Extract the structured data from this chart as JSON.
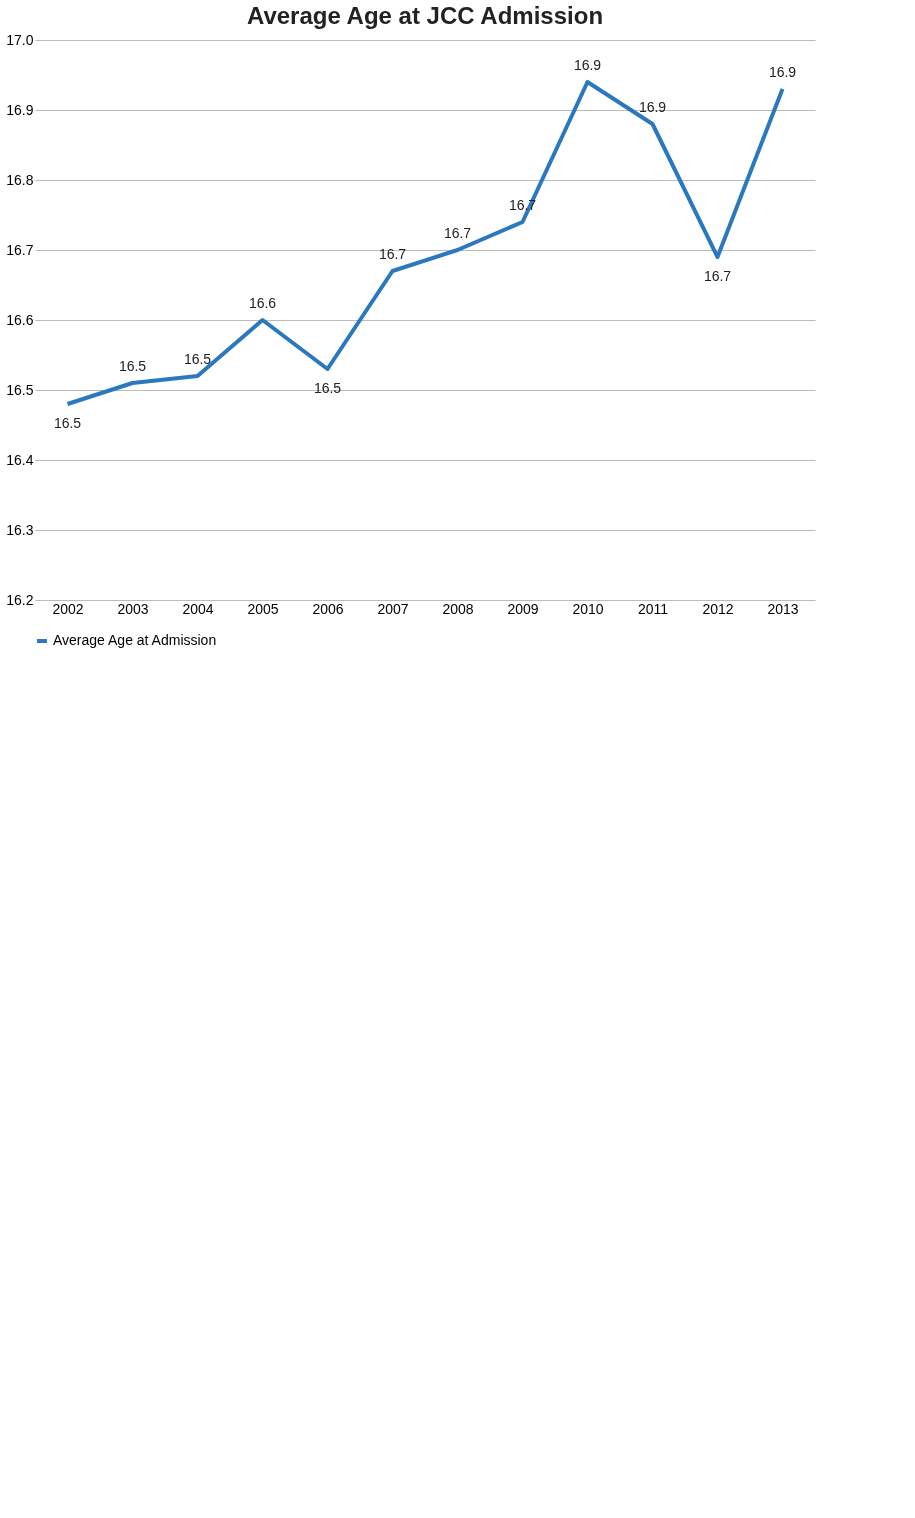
{
  "chart_data": {
    "type": "line",
    "title": "Average Age at JCC Admission",
    "categories": [
      "2002",
      "2003",
      "2004",
      "2005",
      "2006",
      "2007",
      "2008",
      "2009",
      "2010",
      "2011",
      "2012",
      "2013"
    ],
    "series": [
      {
        "name": "Average Age at Admission",
        "color": "#2a78be",
        "values": [
          16.48,
          16.51,
          16.52,
          16.6,
          16.53,
          16.67,
          16.7,
          16.74,
          16.94,
          16.88,
          16.69,
          16.93
        ],
        "value_labels": [
          "16.5",
          "16.5",
          "16.5",
          "16.6",
          "16.5",
          "16.7",
          "16.7",
          "16.7",
          "16.9",
          "16.9",
          "16.7",
          "16.9"
        ]
      }
    ],
    "ylim": [
      16.2,
      17.0
    ],
    "yticks": [
      {
        "value": 16.2,
        "label": "16.2"
      },
      {
        "value": 16.3,
        "label": "16.3"
      },
      {
        "value": 16.4,
        "label": "16.4"
      },
      {
        "value": 16.5,
        "label": "16.5"
      },
      {
        "value": 16.6,
        "label": "16.6"
      },
      {
        "value": 16.7,
        "label": "16.7"
      },
      {
        "value": 16.8,
        "label": "16.8"
      },
      {
        "value": 16.9,
        "label": "16.9"
      },
      {
        "value": 17.0,
        "label": "17.0"
      }
    ],
    "grid": "y",
    "legend": "bottom",
    "marker": "none",
    "line_style": "solid"
  }
}
